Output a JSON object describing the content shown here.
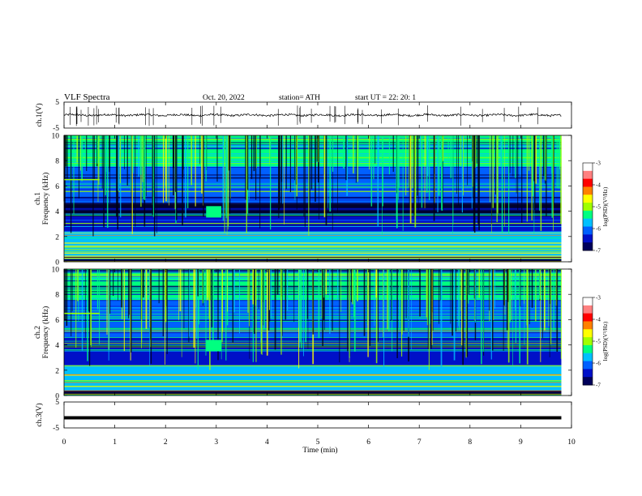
{
  "header": {
    "title": "VLF  Spectra",
    "date": "Oct. 20, 2022",
    "station": "station= ATH",
    "start": "start  UT  =    22: 20: 1"
  },
  "colors": {
    "spectrogram_scale": [
      "#00005a",
      "#0010c8",
      "#0060ff",
      "#00c0ff",
      "#00ff80",
      "#a0ff00",
      "#ffff00",
      "#ff8000",
      "#ff0000",
      "#ffffff"
    ],
    "trace": "#000000"
  },
  "chart_data": [
    {
      "type": "line",
      "name": "ch1-waveform",
      "ylabel": "ch.1(V)",
      "ylim": [
        -5,
        5
      ],
      "yticks": [
        "5",
        "-5"
      ],
      "x_range_min": [
        0,
        10
      ],
      "description_values": "noise trace around ~0 V"
    },
    {
      "type": "heatmap",
      "name": "ch1-spectrogram",
      "ylabel": "ch.1\nFrequency  (kHz)",
      "ylim_khz": [
        0,
        10
      ],
      "yticks": [
        "0",
        "2",
        "4",
        "6",
        "8",
        "10"
      ],
      "x_range_min": [
        0,
        9.8
      ],
      "colorbar": {
        "label": "log(PSD)(V²/Hz)",
        "range": [
          -7,
          -3
        ],
        "ticks": [
          "-3",
          "-4",
          "-5",
          "-6",
          "-7"
        ]
      }
    },
    {
      "type": "heatmap",
      "name": "ch2-spectrogram",
      "ylabel": "ch.2\nFrequency  (kHz)",
      "ylim_khz": [
        0,
        10
      ],
      "yticks": [
        "0",
        "2",
        "4",
        "6",
        "8",
        "10"
      ],
      "x_range_min": [
        0,
        9.8
      ],
      "colorbar": {
        "label": "log(PSD)(V²/Hz)",
        "range": [
          -7,
          -3
        ],
        "ticks": [
          "-3",
          "-4",
          "-5",
          "-6",
          "-7"
        ]
      }
    },
    {
      "type": "line",
      "name": "ch3-waveform",
      "ylabel": "ch.3(V)",
      "ylim": [
        -5,
        5
      ],
      "yticks": [
        "5",
        "-5"
      ],
      "constant_value": -2
    }
  ],
  "xaxis": {
    "label": "Time  (min)",
    "ticks": [
      "0",
      "1",
      "2",
      "3",
      "4",
      "5",
      "6",
      "7",
      "8",
      "9",
      "10"
    ]
  },
  "labels": {
    "ch1": "ch.1(V)",
    "spec1_a": "ch.1",
    "spec1_b": "Frequency  (kHz)",
    "spec2_a": "ch.2",
    "spec2_b": "Frequency  (kHz)",
    "ch3": "ch.3(V)",
    "cb_label": "log(PSD)(V²/Hz)"
  }
}
